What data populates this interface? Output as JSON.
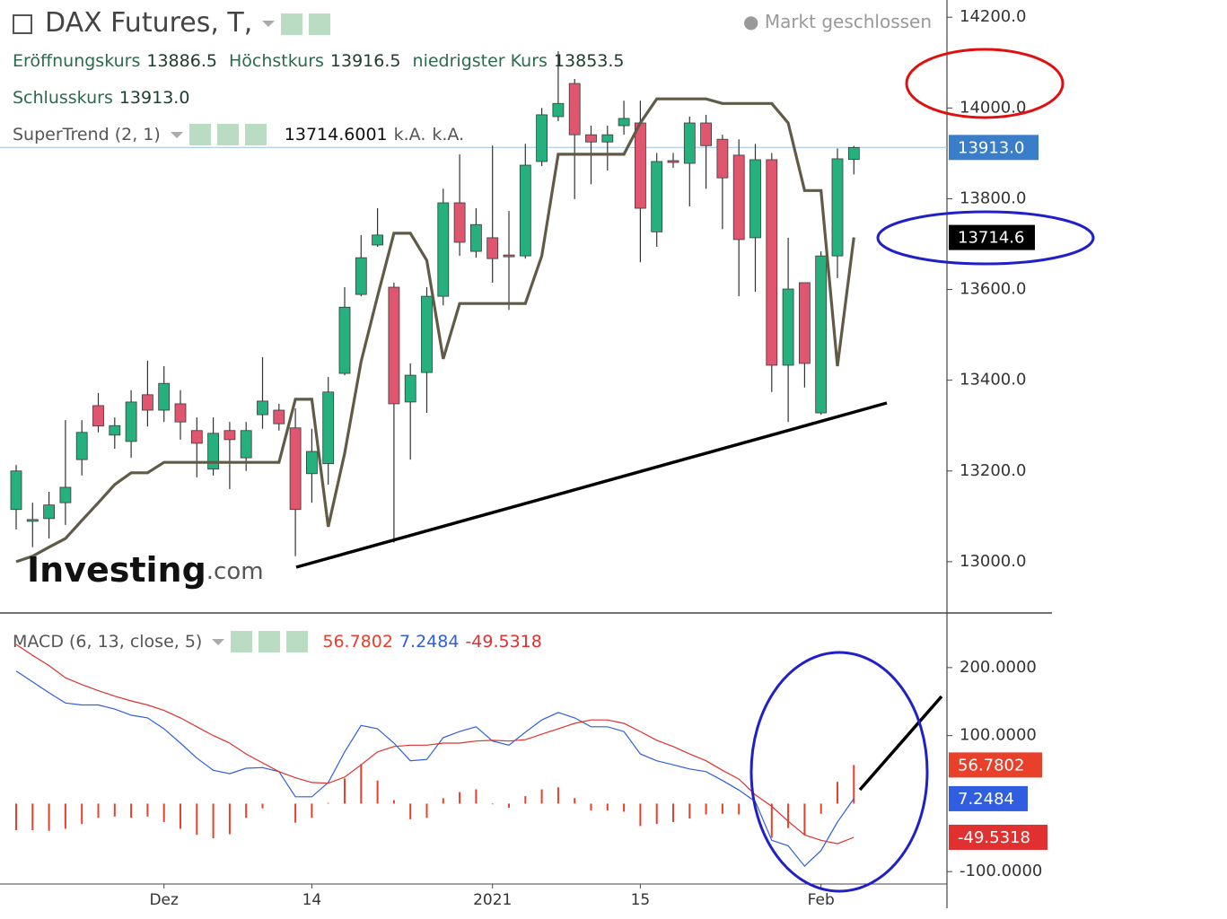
{
  "chart_data": [
    {
      "type": "candlestick",
      "title": "DAX Futures, T,",
      "status": "Markt geschlossen",
      "ohlc_names": [
        "Eröffnungskurs",
        "Höchstkurs",
        "niedrigster Kurs",
        "Schlusskurs"
      ],
      "last_close_label": "13913.0",
      "last_supertrend_label": "13714.6",
      "indicator_status": [
        "k.A.",
        "k.A."
      ],
      "watermark": [
        "Investing",
        ".com"
      ],
      "categories": [
        null,
        null,
        null,
        null,
        null,
        null,
        null,
        null,
        null,
        "Dez",
        null,
        null,
        null,
        null,
        null,
        null,
        null,
        null,
        "14",
        null,
        null,
        null,
        null,
        null,
        null,
        null,
        null,
        null,
        null,
        "2021",
        null,
        null,
        null,
        null,
        null,
        null,
        null,
        null,
        "15",
        null,
        null,
        null,
        null,
        null,
        null,
        null,
        null,
        null,
        null,
        "Feb",
        null,
        null
      ],
      "open": [
        13115,
        13090,
        13095,
        13130,
        13225,
        13344,
        13279,
        13265,
        13368,
        13334,
        13348,
        13289,
        13204,
        13289,
        13229,
        13324,
        13334,
        13295,
        13194,
        13216,
        13415,
        13589,
        13698,
        13605,
        13352,
        13417,
        13585,
        13791,
        13684,
        13714,
        13676,
        13674,
        13882,
        13981,
        14054,
        13941,
        13925,
        13961,
        13967,
        13727,
        13884,
        13878,
        13967,
        13931,
        13896,
        13714,
        13886,
        13433,
        13615,
        13328,
        13674,
        13886.5
      ],
      "high": [
        13213,
        13130,
        13154,
        13312,
        13312,
        13372,
        13318,
        13378,
        13443,
        13431,
        13378,
        13318,
        13318,
        13308,
        13308,
        13451,
        13348,
        13338,
        13293,
        13407,
        13605,
        13720,
        13779,
        13615,
        13437,
        13605,
        13822,
        13898,
        13779,
        13917,
        13773,
        13921,
        14000,
        14125,
        14064,
        13961,
        13961,
        14016,
        14016,
        13901,
        13901,
        13981,
        13985,
        13941,
        13931,
        13921,
        13901,
        13714,
        13615,
        13684,
        13911,
        13916.5
      ],
      "low": [
        13071,
        13032,
        13051,
        13081,
        13190,
        13285,
        13249,
        13229,
        13298,
        13308,
        13269,
        13186,
        13190,
        13160,
        13200,
        13293,
        13289,
        13012,
        13130,
        13170,
        13411,
        13585,
        13694,
        13042,
        13225,
        13328,
        13565,
        13674,
        13670,
        13615,
        13555,
        13668,
        13872,
        13971,
        13799,
        13832,
        13862,
        13941,
        13660,
        13694,
        13868,
        13783,
        13822,
        13733,
        13585,
        13595,
        13374,
        13308,
        13384,
        13324,
        13625,
        13853.5
      ],
      "close": [
        13200,
        13093,
        13125,
        13164,
        13285,
        13299,
        13300,
        13352,
        13334,
        13393,
        13308,
        13261,
        13283,
        13269,
        13289,
        13354,
        13304,
        13115,
        13243,
        13374,
        13561,
        13670,
        13720,
        13348,
        13411,
        13585,
        13791,
        13704,
        13743,
        13668,
        13674,
        13874,
        13985,
        14010,
        13941,
        13925,
        13941,
        13977,
        13779,
        13882,
        13880,
        13967,
        13917,
        13846,
        13710,
        13886,
        13433,
        13601,
        13437,
        13674,
        13888,
        13913
      ],
      "up_color": "#26b07e",
      "down_color": "#e0566f",
      "current_color": "#3a7dc9",
      "series": [
        {
          "name": "SuperTrend (2, 1)",
          "color": "#5f5b47",
          "values": [
            13000,
            13012,
            13032,
            13051,
            13091,
            13130,
            13170,
            13196,
            13196,
            13219,
            13219,
            13219,
            13219,
            13219,
            13219,
            13219,
            13219,
            13358,
            13358,
            13077,
            13239,
            13441,
            13585,
            13724,
            13724,
            13664,
            13447,
            13569,
            13569,
            13569,
            13569,
            13569,
            13674,
            13898,
            13898,
            13898,
            13898,
            13898,
            13967,
            14020,
            14020,
            14020,
            14020,
            14010,
            14010,
            14010,
            14010,
            13967,
            13818,
            13818,
            13431,
            13714.6001
          ]
        }
      ],
      "ylim": [
        12887,
        14238
      ],
      "yticks": [
        {
          "value": 13000,
          "label": "13000.0"
        },
        {
          "value": 13200,
          "label": "13200.0"
        },
        {
          "value": 13400,
          "label": "13400.0"
        },
        {
          "value": 13600,
          "label": "13600.0"
        },
        {
          "value": 13800,
          "label": "13800.0"
        },
        {
          "value": 14000,
          "label": "14000.0"
        },
        {
          "value": 14200,
          "label": "14200.0"
        }
      ]
    },
    {
      "type": "macd",
      "title": "MACD (6, 13, close, 5)",
      "histogram": {
        "color": "#e8402a",
        "values": [
          -39,
          -39,
          -40,
          -37,
          -30,
          -21,
          -19,
          -21,
          -19,
          -27,
          -37,
          -46,
          -51,
          -45,
          -21,
          -7,
          0,
          -28,
          -21,
          1,
          37,
          58,
          34,
          5,
          -23,
          -21,
          8,
          17,
          21,
          -1,
          -6,
          11,
          21,
          24,
          8,
          -10,
          -10,
          -12,
          -33,
          -30,
          -27,
          -22,
          -16,
          -15,
          -16,
          -10,
          -50,
          -36,
          -46,
          -15,
          32,
          56.7802
        ]
      },
      "series": [
        {
          "color": "#2f5fe0",
          "values": [
            195,
            179,
            163,
            148,
            145,
            145,
            139,
            130,
            126,
            110,
            89,
            67,
            49,
            44,
            52,
            53,
            47,
            10,
            10,
            31,
            76,
            115,
            110,
            89,
            63,
            65,
            97,
            106,
            113,
            92,
            86,
            105,
            123,
            134,
            126,
            113,
            113,
            106,
            73,
            63,
            57,
            51,
            47,
            34,
            20,
            3,
            -54,
            -62,
            -92,
            -69,
            -27,
            7.2484
          ]
        },
        {
          "color": "#e03030",
          "values": [
            234,
            218,
            203,
            185,
            175,
            166,
            158,
            151,
            145,
            137,
            126,
            113,
            100,
            89,
            73,
            60,
            47,
            38,
            31,
            30,
            39,
            57,
            76,
            84,
            86,
            86,
            89,
            89,
            92,
            93,
            92,
            94,
            102,
            110,
            118,
            123,
            123,
            118,
            106,
            93,
            84,
            73,
            63,
            49,
            36,
            13,
            -4,
            -26,
            -46,
            -54,
            -59,
            -49.5318
          ]
        }
      ],
      "ylim": [
        -138,
        279
      ],
      "yticks": [
        {
          "value": -100,
          "label": "-100.0000"
        },
        {
          "value": 100,
          "label": "100.0000"
        },
        {
          "value": 200,
          "label": "200.0000"
        }
      ]
    }
  ]
}
